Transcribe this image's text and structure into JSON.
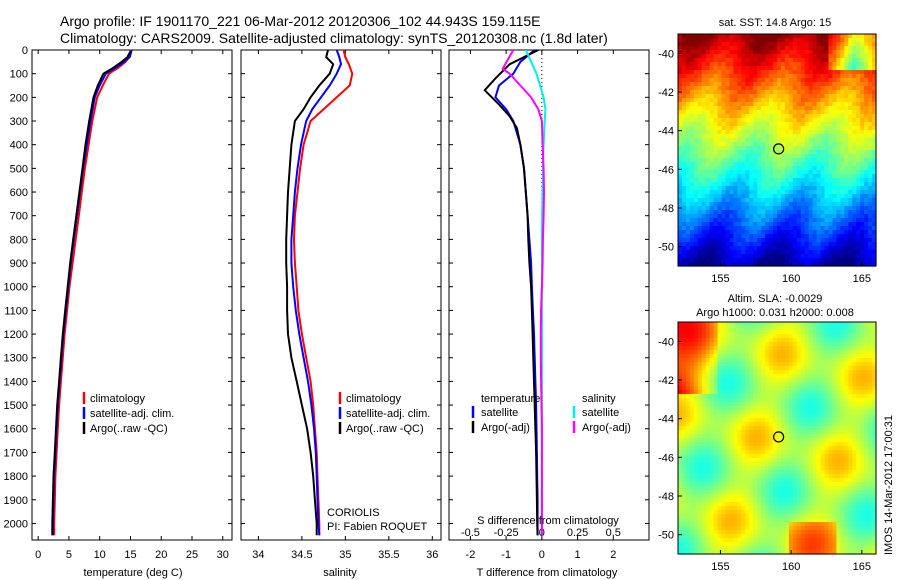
{
  "header": {
    "title_line1": "Argo profile: IF 1901170_221 06-Mar-2012 20120306_102 44.943S 159.115E",
    "title_line2": "Climatology: CARS2009. Satellite-adjusted climatology: synTS_20120308.nc (1.8d later)"
  },
  "colors": {
    "climatology": "#ff0000",
    "satellite": "#0000ff",
    "argo": "#000000",
    "salinity_satellite": "#00eeee",
    "salinity_argo": "#ff00ff"
  },
  "chart_data": [
    {
      "type": "line",
      "id": "temperature",
      "xlabel": "temperature (deg C)",
      "ylabel": "",
      "xlim": [
        -1,
        31.5
      ],
      "ylim": [
        2070,
        0
      ],
      "xticks": [
        0,
        5,
        10,
        15,
        20,
        25,
        30
      ],
      "yticks": [
        0,
        100,
        200,
        300,
        400,
        500,
        600,
        700,
        800,
        900,
        1000,
        1100,
        1200,
        1300,
        1400,
        1500,
        1600,
        1700,
        1800,
        1900,
        2000
      ],
      "legend": [
        "climatology",
        "satellite-adj. clim.",
        "Argo(..raw -QC)"
      ],
      "series": [
        {
          "name": "climatology",
          "color": "#ff0000",
          "x": [
            15.1,
            14.8,
            14.2,
            13.0,
            11.5,
            10.5,
            9.6,
            8.8,
            8.2,
            7.6,
            7.1,
            6.6,
            6.1,
            5.6,
            5.1,
            4.7,
            4.3,
            4.0,
            3.7,
            3.4,
            3.2,
            3.0,
            2.8,
            2.7,
            2.6,
            2.6
          ],
          "y": [
            0,
            30,
            50,
            75,
            100,
            150,
            200,
            300,
            400,
            500,
            600,
            700,
            800,
            900,
            1000,
            1100,
            1200,
            1300,
            1400,
            1500,
            1600,
            1700,
            1800,
            1900,
            2000,
            2050
          ]
        },
        {
          "name": "satellite-adj. clim.",
          "color": "#0000ff",
          "x": [
            15.2,
            14.9,
            14.0,
            12.6,
            11.0,
            10.0,
            9.2,
            8.5,
            7.9,
            7.3,
            6.8,
            6.3,
            5.8,
            5.3,
            4.9,
            4.5,
            4.1,
            3.8,
            3.5,
            3.2,
            3.0,
            2.8,
            2.6,
            2.5,
            2.4,
            2.4
          ],
          "y": [
            0,
            30,
            50,
            75,
            100,
            150,
            200,
            300,
            400,
            500,
            600,
            700,
            800,
            900,
            1000,
            1100,
            1200,
            1300,
            1400,
            1500,
            1600,
            1700,
            1800,
            1900,
            2000,
            2050
          ]
        },
        {
          "name": "Argo(..raw -QC)",
          "color": "#000000",
          "x": [
            15.0,
            14.5,
            13.6,
            12.2,
            10.6,
            9.7,
            9.0,
            8.3,
            7.7,
            7.2,
            6.7,
            6.2,
            5.7,
            5.2,
            4.8,
            4.4,
            4.0,
            3.7,
            3.4,
            3.1,
            2.9,
            2.7,
            2.5,
            2.4,
            2.3,
            2.3
          ],
          "y": [
            5,
            30,
            50,
            75,
            100,
            150,
            200,
            300,
            400,
            500,
            600,
            700,
            800,
            900,
            1000,
            1100,
            1200,
            1300,
            1400,
            1500,
            1600,
            1700,
            1800,
            1900,
            2000,
            2050
          ]
        }
      ]
    },
    {
      "type": "line",
      "id": "salinity",
      "xlabel": "salinity",
      "xlim": [
        33.8,
        36.1
      ],
      "ylim": [
        2070,
        0
      ],
      "xticks": [
        34,
        34.5,
        35,
        35.5,
        36
      ],
      "legend": [
        "climatology",
        "satellite-adj. clim.",
        "Argo(..raw -QC)"
      ],
      "annotation": [
        "CORIOLIS",
        "PI: Fabien ROQUET"
      ],
      "series": [
        {
          "name": "climatology",
          "color": "#ff0000",
          "x": [
            34.98,
            35.0,
            35.04,
            35.08,
            35.05,
            34.9,
            34.75,
            34.6,
            34.52,
            34.48,
            34.45,
            34.42,
            34.41,
            34.42,
            34.44,
            34.46,
            34.5,
            34.55,
            34.6,
            34.63,
            34.65,
            34.67,
            34.68,
            34.69,
            34.7,
            34.7
          ],
          "y": [
            0,
            30,
            60,
            100,
            150,
            200,
            250,
            300,
            400,
            500,
            600,
            700,
            800,
            900,
            1000,
            1100,
            1200,
            1300,
            1400,
            1500,
            1600,
            1700,
            1800,
            1900,
            2000,
            2050
          ]
        },
        {
          "name": "satellite-adj. clim.",
          "color": "#0000ff",
          "x": [
            34.9,
            34.93,
            34.95,
            34.9,
            34.82,
            34.72,
            34.62,
            34.55,
            34.49,
            34.45,
            34.42,
            34.4,
            34.38,
            34.38,
            34.4,
            34.43,
            34.47,
            34.52,
            34.57,
            34.61,
            34.64,
            34.66,
            34.67,
            34.68,
            34.69,
            34.7
          ],
          "y": [
            0,
            30,
            60,
            100,
            150,
            200,
            250,
            300,
            400,
            500,
            600,
            700,
            800,
            900,
            1000,
            1100,
            1200,
            1300,
            1400,
            1500,
            1600,
            1700,
            1800,
            1900,
            2000,
            2050
          ]
        },
        {
          "name": "Argo(..raw -QC)",
          "color": "#000000",
          "x": [
            34.8,
            34.78,
            34.86,
            34.82,
            34.7,
            34.6,
            34.52,
            34.42,
            34.38,
            34.36,
            34.34,
            34.33,
            34.32,
            34.32,
            34.33,
            34.33,
            34.34,
            34.38,
            34.44,
            34.5,
            34.56,
            34.6,
            34.63,
            34.65,
            34.67,
            34.67
          ],
          "y": [
            0,
            30,
            60,
            100,
            150,
            200,
            250,
            300,
            400,
            500,
            600,
            700,
            800,
            900,
            1000,
            1100,
            1200,
            1300,
            1400,
            1500,
            1600,
            1700,
            1800,
            1900,
            2000,
            2050
          ]
        }
      ]
    },
    {
      "type": "line",
      "id": "difference",
      "xlabel": "T difference from climatology",
      "xlabel_top": "S difference from climatology",
      "xlim": [
        -2.6,
        3.0
      ],
      "ylim": [
        2070,
        0
      ],
      "xticks": [
        -2,
        -1,
        0,
        1,
        2
      ],
      "xticks_S": [
        -0.5,
        -0.25,
        0,
        0.25,
        0.5
      ],
      "legend_temperature_title": "temperature",
      "legend_salinity_title": "salinity",
      "legend": [
        "satellite",
        "Argo(-adj)",
        "satellite",
        "Argo(-adj)"
      ],
      "series": [
        {
          "name": "satellite",
          "group": "temperature",
          "color": "#0000ff",
          "x": [
            -0.2,
            -0.6,
            -0.8,
            -1.2,
            -1.3,
            -1.0,
            -0.8,
            -0.6,
            -0.5,
            -0.45,
            -0.4,
            -0.35,
            -0.3,
            -0.28,
            -0.25,
            -0.22,
            -0.2,
            -0.18,
            -0.16,
            -0.15,
            -0.14,
            -0.13,
            -0.12,
            -0.12,
            -0.12,
            -0.12
          ],
          "y": [
            0,
            50,
            100,
            150,
            200,
            250,
            300,
            400,
            500,
            600,
            700,
            800,
            900,
            1000,
            1100,
            1200,
            1300,
            1400,
            1500,
            1600,
            1700,
            1800,
            1900,
            2000,
            2050,
            2050
          ]
        },
        {
          "name": "Argo(-adj)",
          "group": "temperature",
          "color": "#000000",
          "x": [
            -0.1,
            -0.9,
            -1.3,
            -1.6,
            -1.2,
            -0.9,
            -0.7,
            -0.6,
            -0.5,
            -0.45,
            -0.4,
            -0.38,
            -0.35,
            -0.3,
            -0.28,
            -0.26,
            -0.24,
            -0.22,
            -0.2,
            -0.18,
            -0.16,
            -0.15,
            -0.14,
            -0.13,
            -0.12,
            -0.12
          ],
          "y": [
            0,
            60,
            120,
            170,
            230,
            280,
            330,
            400,
            500,
            600,
            700,
            800,
            900,
            1000,
            1100,
            1200,
            1300,
            1400,
            1500,
            1600,
            1700,
            1800,
            1900,
            2000,
            2050,
            2050
          ]
        },
        {
          "name": "satellite",
          "group": "salinity",
          "color": "#00eeee",
          "x": [
            -0.45,
            -0.3,
            -0.15,
            -0.05,
            0.05,
            0.1,
            0.08,
            0.05,
            0.03,
            0.02,
            0.01,
            0.0,
            0.0,
            0.0,
            0.0,
            0.0,
            0.0,
            0.0,
            0.0,
            0.0,
            0.0,
            0.0,
            0.0,
            0.0,
            0.0,
            0.0
          ],
          "y": [
            0,
            50,
            100,
            150,
            200,
            250,
            300,
            400,
            500,
            600,
            700,
            800,
            900,
            1000,
            1100,
            1200,
            1300,
            1400,
            1500,
            1600,
            1700,
            1800,
            1900,
            2000,
            2050,
            2050
          ]
        },
        {
          "name": "Argo(-adj)",
          "group": "salinity",
          "color": "#ff00ff",
          "x": [
            -0.8,
            -1.1,
            -0.9,
            -0.6,
            -0.3,
            -0.1,
            0.0,
            0.02,
            0.05,
            0.06,
            0.05,
            0.03,
            0.02,
            0.0,
            -0.02,
            -0.03,
            -0.03,
            -0.02,
            -0.01,
            0.0,
            0.0,
            0.0,
            0.0,
            0.0,
            0.0,
            0.0
          ],
          "y": [
            0,
            80,
            100,
            150,
            200,
            250,
            300,
            400,
            500,
            600,
            700,
            800,
            900,
            1000,
            1100,
            1200,
            1300,
            1400,
            1500,
            1600,
            1700,
            1800,
            1900,
            2000,
            2050,
            2050
          ]
        }
      ]
    },
    {
      "type": "heatmap",
      "id": "sst_map",
      "title": "sat. SST: 14.8 Argo: 15",
      "xlim": [
        152,
        166
      ],
      "ylim": [
        -51,
        -39
      ],
      "xticks": [
        155,
        160,
        165
      ],
      "yticks": [
        -40,
        -42,
        -44,
        -46,
        -48,
        -50
      ],
      "marker": {
        "lon": 159.115,
        "lat": -44.943
      }
    },
    {
      "type": "heatmap",
      "id": "sla_map",
      "title_line1": "Altim. SLA: -0.0029",
      "title_line2": "Argo h1000: 0.031 h2000: 0.008",
      "xlim": [
        152,
        166
      ],
      "ylim": [
        -51,
        -39
      ],
      "xticks": [
        155,
        160,
        165
      ],
      "yticks": [
        -40,
        -42,
        -44,
        -46,
        -48,
        -50
      ],
      "marker": {
        "lon": 159.115,
        "lat": -44.943
      }
    }
  ],
  "footer": {
    "imos_stamp": "IMOS 14-Mar-2012 17:00:31"
  }
}
